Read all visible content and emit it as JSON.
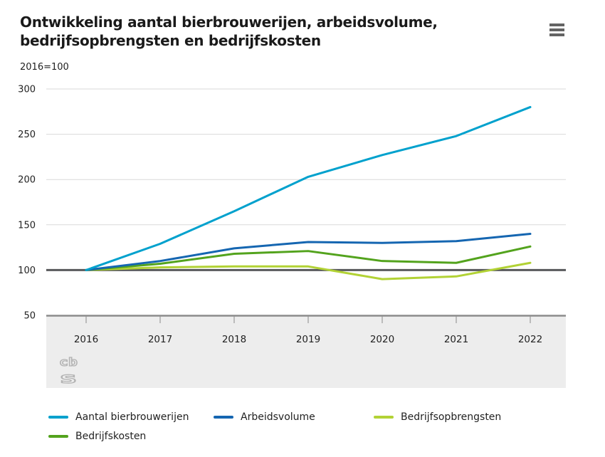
{
  "header": {
    "title_line1": "Ontwikkeling aantal bierbrouwerijen, arbeidsvolume,",
    "title_line2": "bedrijfsopbrengsten en bedrijfskosten",
    "subtitle": "2016=100",
    "menu_icon": "hamburger-icon"
  },
  "chart_data": {
    "type": "line",
    "title": "Ontwikkeling aantal bierbrouwerijen, arbeidsvolume, bedrijfsopbrengsten en bedrijfskosten",
    "subtitle": "2016=100",
    "x": [
      2016,
      2017,
      2018,
      2019,
      2020,
      2021,
      2022
    ],
    "series": [
      {
        "name": "Aantal bierbrouwerijen",
        "color": "#00a1cd",
        "values": [
          100,
          129,
          165,
          203,
          227,
          248,
          280
        ]
      },
      {
        "name": "Arbeidsvolume",
        "color": "#1566b1",
        "values": [
          100,
          110,
          124,
          131,
          130,
          132,
          140
        ]
      },
      {
        "name": "Bedrijfsopbrengsten",
        "color": "#b2d235",
        "values": [
          100,
          103,
          104,
          104,
          90,
          93,
          108
        ]
      },
      {
        "name": "Bedrijfskosten",
        "color": "#53a31d",
        "values": [
          100,
          107,
          118,
          121,
          110,
          108,
          126
        ]
      }
    ],
    "ylim": [
      50,
      300
    ],
    "yticks": [
      300,
      250,
      200,
      150,
      100,
      50
    ],
    "baseline": 100,
    "grid": true,
    "legend_position": "bottom"
  },
  "colors": {
    "gridline": "#d9d9d9",
    "baseline": "#58595b",
    "axis": "#8c8c8c",
    "tick": "#9a9a9a",
    "axis_band": "#ededed",
    "label": "#222222",
    "logo": "#b3b3b3"
  },
  "footer": {
    "logo": "cbs-logo"
  }
}
